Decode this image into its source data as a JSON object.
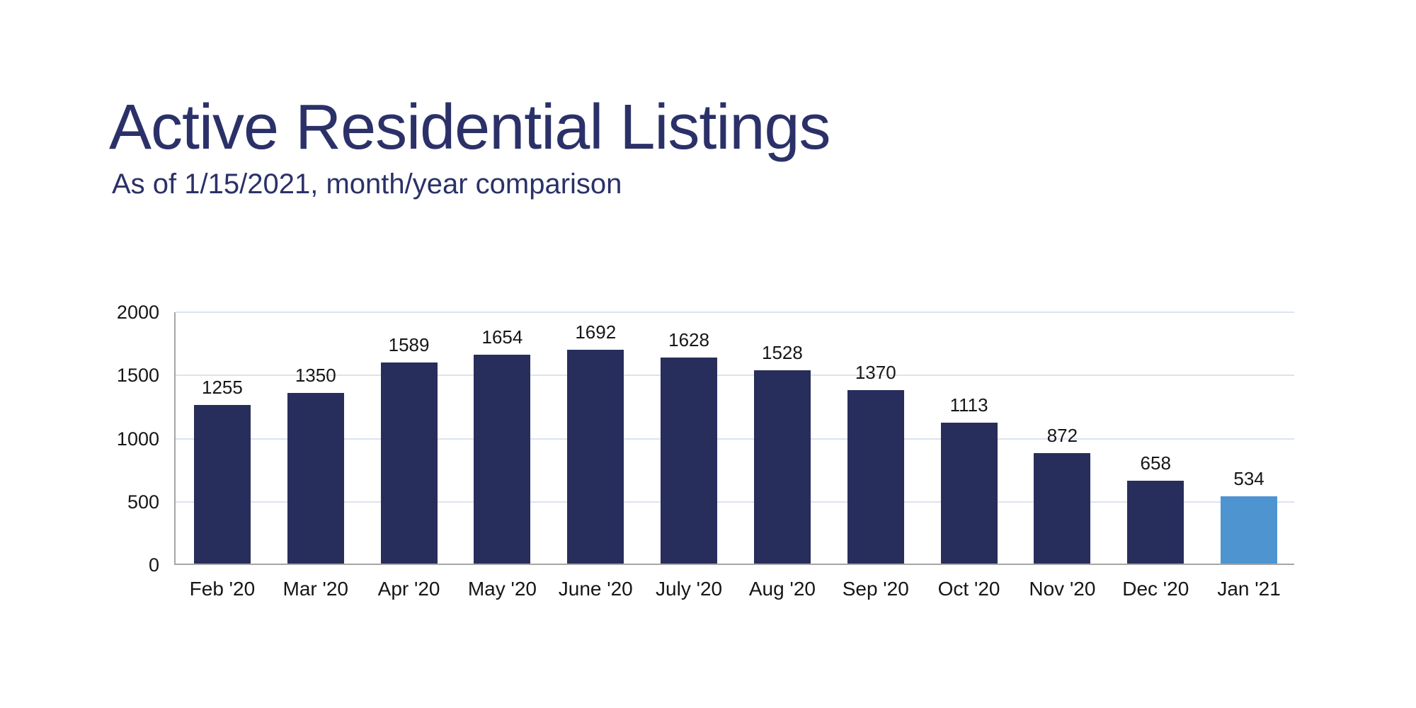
{
  "page": {
    "title": "Active Residential Listings",
    "subtitle": "As of 1/15/2021, month/year comparison"
  },
  "colors": {
    "bg": "#ffffff",
    "bar": "#272e5c",
    "highlight": "#4e94d1",
    "title": "#2b3168",
    "gridline": "#dce3ef",
    "axis": "#a6a6a6",
    "label": "#161616"
  },
  "chart_data": {
    "type": "bar",
    "title": "Active Residential Listings",
    "subtitle": "As of 1/15/2021, month/year comparison",
    "categories": [
      "Feb '20",
      "Mar '20",
      "Apr '20",
      "May '20",
      "June '20",
      "July '20",
      "Aug '20",
      "Sep '20",
      "Oct '20",
      "Nov '20",
      "Dec '20",
      "Jan '21"
    ],
    "values": [
      1255,
      1350,
      1589,
      1654,
      1692,
      1628,
      1528,
      1370,
      1113,
      872,
      658,
      534
    ],
    "data_labels": [
      1255,
      1350,
      1589,
      1654,
      1692,
      1628,
      1528,
      1370,
      1113,
      872,
      658,
      534
    ],
    "highlight_index": 11,
    "xlabel": "",
    "ylabel": "",
    "ylim": [
      0,
      2000
    ],
    "yticks": [
      2000,
      1500,
      1000,
      500,
      0
    ],
    "grid": true,
    "legend": false,
    "bar_color": "#272e5c",
    "highlight_color": "#4e94d1"
  }
}
